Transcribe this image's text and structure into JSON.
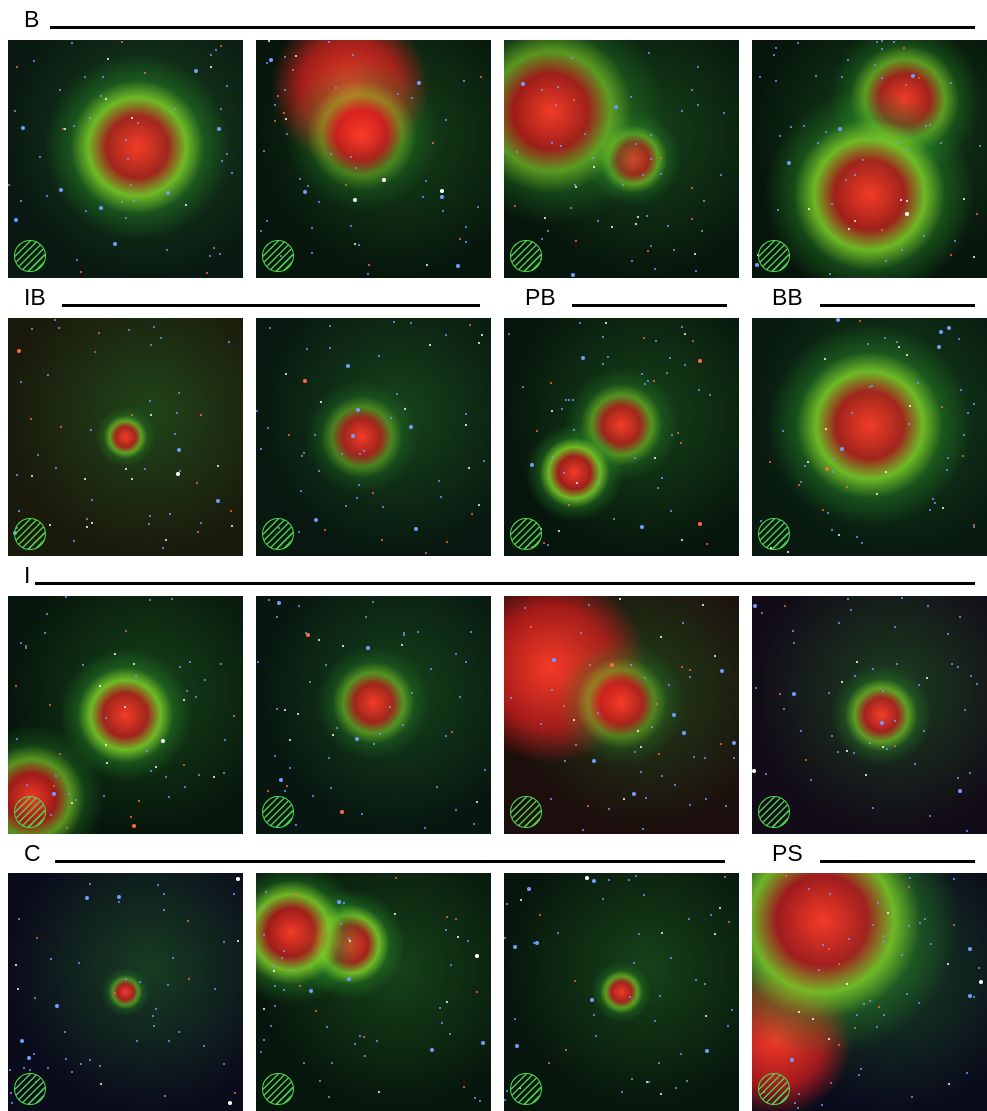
{
  "rows": [
    {
      "groups": [
        {
          "label": "B"
        }
      ]
    },
    {
      "groups": [
        {
          "label": "IB"
        },
        {
          "label": "PB"
        },
        {
          "label": "BB"
        }
      ]
    },
    {
      "groups": [
        {
          "label": "I"
        }
      ]
    },
    {
      "groups": [
        {
          "label": "C"
        },
        {
          "label": "PS"
        }
      ]
    }
  ]
}
